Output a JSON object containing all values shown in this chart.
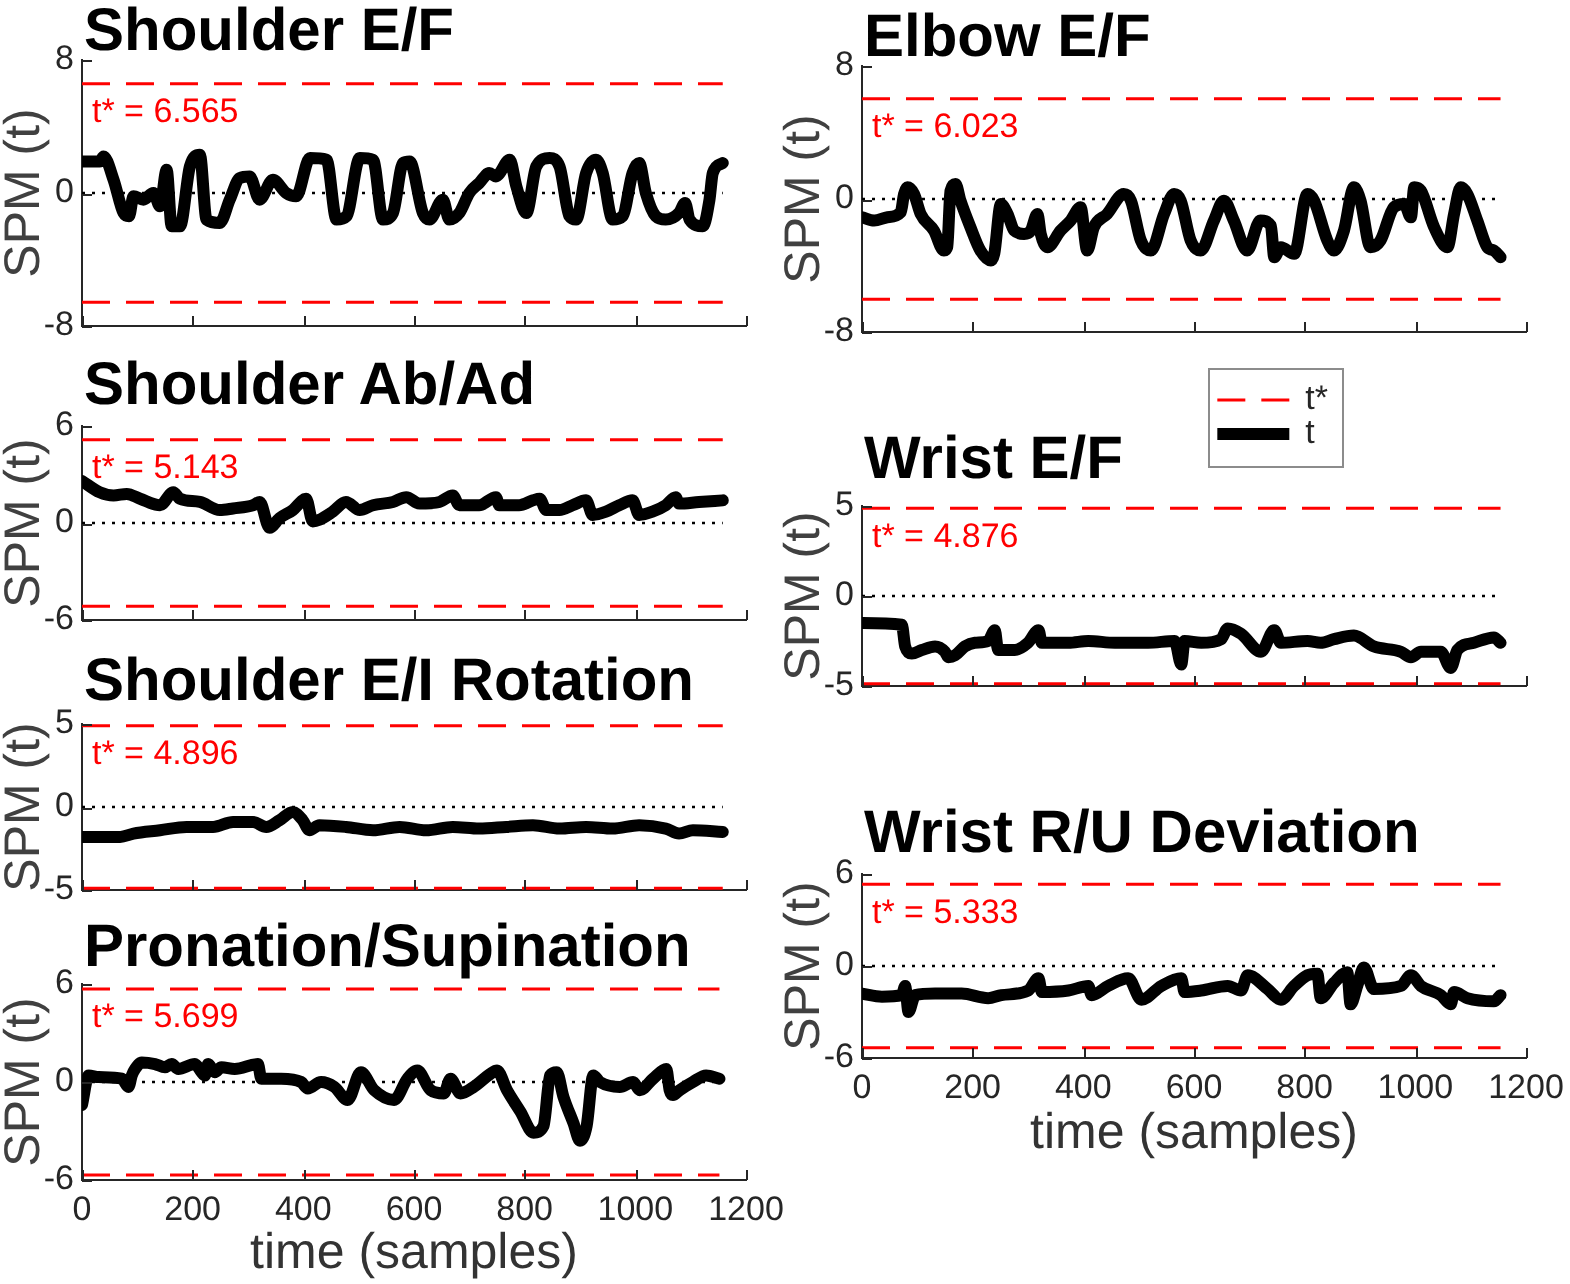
{
  "chart_data": [
    {
      "type": "line",
      "title": "Shoulder E/F",
      "ylabel": "SPM (t)",
      "xlim": [
        0,
        1200
      ],
      "xticks": [
        0,
        200,
        400,
        600,
        800,
        1000,
        1200
      ],
      "ylim": [
        -8,
        8
      ],
      "yticks": [
        -8,
        0,
        8
      ],
      "tick_labels": "y",
      "series": [
        {
          "color": "#000000",
          "x": [
            0,
            32,
            39,
            57,
            75,
            85,
            93,
            111,
            129,
            141,
            153,
            162,
            177,
            195,
            213,
            225,
            249,
            267,
            285,
            303,
            321,
            345,
            369,
            387,
            412,
            442,
            460,
            478,
            502,
            526,
            544,
            562,
            580,
            592,
            616,
            628,
            652,
            664,
            682,
            700,
            718,
            736,
            748,
            773,
            785,
            803,
            821,
            845,
            863,
            881,
            893,
            911,
            929,
            941,
            959,
            977,
            995,
            1007,
            1019,
            1037,
            1055,
            1079,
            1090,
            1098,
            1122,
            1134,
            1140,
            1158
          ],
          "values": [
            1.9,
            1.9,
            2.2,
            0.8,
            -1.2,
            -1.4,
            -0.2,
            -0.4,
            0,
            -0.8,
            1.4,
            -2,
            -2,
            1.6,
            2.3,
            -1.6,
            -1.8,
            -0.4,
            0.9,
            1,
            -0.4,
            0.8,
            0,
            -0.2,
            2.1,
            2,
            -1.6,
            -1.4,
            2.1,
            2,
            -1.6,
            -1.2,
            1.8,
            1.9,
            -1.2,
            -1.6,
            -0.4,
            -1.6,
            -1.2,
            0,
            0.6,
            1.2,
            1,
            2,
            0.4,
            -1.2,
            1.6,
            2.1,
            1.6,
            -1.4,
            -1.6,
            1.2,
            2,
            1.2,
            -1.6,
            -1.4,
            1.2,
            1.8,
            0,
            -1.4,
            -1.6,
            -1.2,
            -0.6,
            -1.6,
            -2,
            -0.4,
            1.2,
            1.8
          ]
        }
      ],
      "ref_lines": [
        {
          "axis": "y",
          "value": 6.565,
          "color": "#ff0000",
          "line_style": "dashed"
        },
        {
          "axis": "y",
          "value": -6.565,
          "color": "#ff0000",
          "line_style": "dashed"
        },
        {
          "axis": "y",
          "value": 0,
          "color": "#000000",
          "line_style": "dotted"
        }
      ],
      "annotations": [
        "t* = 6.565"
      ]
    },
    {
      "type": "line",
      "title": "Shoulder Ab/Ad",
      "ylabel": "SPM (t)",
      "xlim": [
        0,
        1200
      ],
      "xticks": [
        0,
        200,
        400,
        600,
        800,
        1000,
        1200
      ],
      "ylim": [
        -6,
        6
      ],
      "yticks": [
        -6,
        0,
        6
      ],
      "tick_labels": "y",
      "series": [
        {
          "color": "#000000",
          "x": [
            0,
            32,
            57,
            81,
            105,
            141,
            165,
            177,
            213,
            249,
            273,
            309,
            321,
            339,
            357,
            381,
            405,
            417,
            429,
            453,
            477,
            502,
            526,
            562,
            586,
            610,
            646,
            670,
            682,
            718,
            748,
            754,
            790,
            815,
            827,
            839,
            863,
            887,
            911,
            923,
            947,
            971,
            995,
            1007,
            1031,
            1055,
            1073,
            1079,
            1115,
            1158
          ],
          "values": [
            2.6,
            1.9,
            1.7,
            1.8,
            1.5,
            1.1,
            1.9,
            1.5,
            1.3,
            0.8,
            0.9,
            1.1,
            1.3,
            -0.3,
            0.3,
            0.8,
            1.5,
            0.1,
            0.2,
            0.7,
            1.3,
            0.8,
            1.1,
            1.3,
            1.6,
            1.2,
            1.3,
            1.7,
            1.1,
            1.1,
            1.6,
            1.1,
            1.1,
            1.4,
            1.5,
            0.8,
            0.8,
            1.1,
            1.4,
            0.5,
            0.7,
            1.1,
            1.4,
            0.5,
            0.7,
            1.1,
            1.6,
            1.2,
            1.3,
            1.4
          ]
        }
      ],
      "ref_lines": [
        {
          "axis": "y",
          "value": 5.143,
          "color": "#ff0000",
          "line_style": "dashed"
        },
        {
          "axis": "y",
          "value": -5.143,
          "color": "#ff0000",
          "line_style": "dashed"
        },
        {
          "axis": "y",
          "value": 0,
          "color": "#000000",
          "line_style": "dotted"
        }
      ],
      "annotations": [
        "t* = 5.143"
      ]
    },
    {
      "type": "line",
      "title": "Shoulder E/I Rotation",
      "ylabel": "SPM (t)",
      "xlim": [
        0,
        1200
      ],
      "xticks": [
        0,
        200,
        400,
        600,
        800,
        1000,
        1200
      ],
      "ylim": [
        -5,
        5
      ],
      "yticks": [
        -5,
        0,
        5
      ],
      "tick_labels": "y",
      "series": [
        {
          "color": "#000000",
          "x": [
            0,
            69,
            93,
            141,
            189,
            237,
            273,
            309,
            333,
            357,
            381,
            399,
            411,
            429,
            477,
            526,
            574,
            622,
            670,
            718,
            767,
            815,
            863,
            911,
            959,
            1007,
            1055,
            1079,
            1104,
            1158
          ],
          "values": [
            -1.8,
            -1.8,
            -1.6,
            -1.4,
            -1.2,
            -1.2,
            -0.9,
            -0.9,
            -1.2,
            -0.8,
            -0.3,
            -0.8,
            -1.4,
            -1.1,
            -1.2,
            -1.4,
            -1.2,
            -1.4,
            -1.2,
            -1.3,
            -1.2,
            -1.1,
            -1.3,
            -1.2,
            -1.3,
            -1.1,
            -1.3,
            -1.6,
            -1.4,
            -1.5
          ]
        }
      ],
      "ref_lines": [
        {
          "axis": "y",
          "value": 4.896,
          "color": "#ff0000",
          "line_style": "dashed"
        },
        {
          "axis": "y",
          "value": -4.896,
          "color": "#ff0000",
          "line_style": "dashed"
        },
        {
          "axis": "y",
          "value": 0,
          "color": "#000000",
          "line_style": "dotted"
        }
      ],
      "annotations": [
        "t* = 4.896"
      ]
    },
    {
      "type": "line",
      "title": "Pronation/Supination",
      "ylabel": "SPM (t)",
      "xlabel": "time (samples)",
      "xlim": [
        0,
        1200
      ],
      "xticks": [
        0,
        200,
        400,
        600,
        800,
        1000,
        1200
      ],
      "ylim": [
        -6,
        6
      ],
      "yticks": [
        -6,
        0,
        6
      ],
      "series": [
        {
          "color": "#000000",
          "x": [
            0,
            12,
            30,
            72,
            84,
            90,
            96,
            108,
            132,
            150,
            162,
            174,
            204,
            216,
            222,
            228,
            240,
            252,
            276,
            318,
            324,
            360,
            396,
            408,
            432,
            456,
            480,
            504,
            528,
            564,
            588,
            606,
            630,
            654,
            666,
            684,
            708,
            738,
            750,
            768,
            792,
            816,
            834,
            846,
            858,
            870,
            888,
            900,
            912,
            924,
            936,
            972,
            996,
            1008,
            1032,
            1056,
            1062,
            1068,
            1080,
            1104,
            1128,
            1152
          ],
          "values": [
            -1.4,
            0.4,
            0.3,
            0.2,
            -0.3,
            0.4,
            0.8,
            1.2,
            1.1,
            0.9,
            1.1,
            0.8,
            1.1,
            0.6,
            0.4,
            1.1,
            0.6,
            0.9,
            0.8,
            1.1,
            0.2,
            0.2,
            0,
            -0.4,
            0,
            -0.3,
            -1.1,
            0.6,
            -0.5,
            -1.1,
            0.2,
            0.7,
            -0.5,
            -0.7,
            0.2,
            -0.7,
            -0.3,
            0.5,
            0.7,
            -0.5,
            -1.8,
            -3.1,
            -2.7,
            0.4,
            0.6,
            -0.9,
            -2.5,
            -3.6,
            -2.7,
            0.4,
            0,
            -0.3,
            0,
            -0.5,
            0.2,
            0.8,
            -0.5,
            -0.8,
            -0.5,
            0,
            0.4,
            0.2
          ]
        }
      ],
      "ref_lines": [
        {
          "axis": "y",
          "value": 5.699,
          "color": "#ff0000",
          "line_style": "dashed"
        },
        {
          "axis": "y",
          "value": -5.699,
          "color": "#ff0000",
          "line_style": "dashed"
        },
        {
          "axis": "y",
          "value": 0,
          "color": "#000000",
          "line_style": "dotted"
        }
      ],
      "annotations": [
        "t* = 5.699"
      ]
    },
    {
      "type": "line",
      "title": "Elbow E/F",
      "ylabel": "SPM (t)",
      "xlim": [
        0,
        1200
      ],
      "xticks": [
        0,
        200,
        400,
        600,
        800,
        1000,
        1200
      ],
      "ylim": [
        -8,
        8
      ],
      "yticks": [
        -8,
        0,
        8
      ],
      "tick_labels": "y",
      "series": [
        {
          "color": "#000000",
          "x": [
            0,
            22,
            46,
            70,
            76,
            82,
            94,
            106,
            130,
            148,
            154,
            160,
            169,
            178,
            196,
            214,
            233,
            239,
            251,
            263,
            275,
            293,
            305,
            317,
            323,
            335,
            359,
            377,
            395,
            407,
            419,
            443,
            473,
            486,
            504,
            522,
            546,
            564,
            576,
            594,
            612,
            636,
            654,
            672,
            696,
            720,
            739,
            745,
            757,
            781,
            805,
            817,
            841,
            853,
            871,
            889,
            901,
            919,
            937,
            961,
            980,
            992,
            998,
            1010,
            1034,
            1058,
            1070,
            1082,
            1094,
            1112,
            1130,
            1142,
            1154
          ],
          "values": [
            -1.1,
            -1.3,
            -1.1,
            -0.8,
            0.3,
            0.7,
            0.3,
            -0.9,
            -1.9,
            -3.1,
            -2.9,
            0.5,
            0.9,
            -0.1,
            -1.7,
            -3.1,
            -3.7,
            -3.3,
            -0.3,
            -0.9,
            -1.9,
            -2.1,
            -1.9,
            -0.9,
            -2.1,
            -2.9,
            -1.9,
            -1.3,
            -0.5,
            -3.1,
            -1.7,
            -0.9,
            0.3,
            -0.1,
            -2.5,
            -3.1,
            -0.9,
            0.3,
            -0.1,
            -2.5,
            -3.1,
            -1.3,
            -0.1,
            -1.3,
            -3.1,
            -1.3,
            -1.6,
            -3.5,
            -2.9,
            -3.3,
            0.3,
            -0.1,
            -2.5,
            -3.1,
            -1.9,
            0.7,
            -0.1,
            -2.9,
            -2.5,
            -0.5,
            -0.3,
            -1.1,
            0.7,
            0.5,
            -1.7,
            -2.9,
            -0.9,
            0.7,
            0.3,
            -1.3,
            -2.9,
            -3.1,
            -3.5
          ]
        }
      ],
      "ref_lines": [
        {
          "axis": "y",
          "value": 6.023,
          "color": "#ff0000",
          "line_style": "dashed"
        },
        {
          "axis": "y",
          "value": -6.023,
          "color": "#ff0000",
          "line_style": "dashed"
        },
        {
          "axis": "y",
          "value": 0,
          "color": "#000000",
          "line_style": "dotted"
        }
      ],
      "annotations": [
        "t* = 6.023"
      ]
    },
    {
      "type": "line",
      "title": "Wrist E/F",
      "ylabel": "SPM (t)",
      "xlim": [
        0,
        1200
      ],
      "xticks": [
        0,
        200,
        400,
        600,
        800,
        1000,
        1200
      ],
      "ylim": [
        -5,
        5
      ],
      "yticks": [
        -5,
        0,
        5
      ],
      "tick_labels": "y",
      "legend": "top right",
      "series": [
        {
          "name": "t",
          "color": "#000000",
          "x": [
            0,
            72,
            78,
            90,
            108,
            132,
            150,
            156,
            168,
            186,
            204,
            228,
            240,
            246,
            276,
            300,
            319,
            325,
            373,
            409,
            457,
            517,
            565,
            577,
            583,
            613,
            649,
            661,
            685,
            721,
            745,
            757,
            805,
            829,
            853,
            889,
            925,
            974,
            992,
            1010,
            1046,
            1064,
            1076,
            1106,
            1142,
            1154
          ],
          "values": [
            -1.5,
            -1.6,
            -2.8,
            -3.2,
            -3.0,
            -2.8,
            -3.1,
            -3.4,
            -3.3,
            -2.8,
            -2.6,
            -2.5,
            -1.9,
            -3.0,
            -3.0,
            -2.6,
            -1.9,
            -2.6,
            -2.6,
            -2.5,
            -2.6,
            -2.6,
            -2.5,
            -3.8,
            -2.5,
            -2.6,
            -2.4,
            -1.8,
            -2.1,
            -3.1,
            -1.9,
            -2.6,
            -2.5,
            -2.6,
            -2.4,
            -2.2,
            -2.8,
            -3.1,
            -3.4,
            -3.1,
            -3.1,
            -4.0,
            -3.0,
            -2.6,
            -2.3,
            -2.6
          ]
        }
      ],
      "ref_lines": [
        {
          "axis": "y",
          "value": 4.876,
          "label": "t*",
          "color": "#ff0000",
          "line_style": "dashed"
        },
        {
          "axis": "y",
          "value": -4.876,
          "color": "#ff0000",
          "line_style": "dashed"
        },
        {
          "axis": "y",
          "value": 0,
          "color": "#000000",
          "line_style": "dotted"
        }
      ],
      "annotations": [
        "t* = 4.876"
      ]
    },
    {
      "type": "line",
      "title": "Wrist R/U Deviation",
      "ylabel": "SPM (t)",
      "xlabel": "time (samples)",
      "xlim": [
        0,
        1200
      ],
      "xticks": [
        0,
        200,
        400,
        600,
        800,
        1000,
        1200
      ],
      "ylim": [
        -6,
        6
      ],
      "yticks": [
        -6,
        0,
        6
      ],
      "series": [
        {
          "color": "#000000",
          "x": [
            0,
            36,
            72,
            78,
            84,
            96,
            132,
            180,
            228,
            252,
            300,
            319,
            325,
            373,
            409,
            415,
            445,
            481,
            505,
            541,
            577,
            583,
            613,
            661,
            685,
            697,
            733,
            757,
            781,
            805,
            823,
            829,
            853,
            877,
            883,
            895,
            907,
            925,
            974,
            992,
            1010,
            1046,
            1064,
            1070,
            1094,
            1142,
            1154
          ],
          "values": [
            -1.8,
            -2.0,
            -1.9,
            -1.3,
            -3.0,
            -1.9,
            -1.8,
            -1.8,
            -2.1,
            -1.9,
            -1.6,
            -0.8,
            -1.7,
            -1.6,
            -1.3,
            -1.9,
            -1.3,
            -0.8,
            -2.2,
            -1.3,
            -0.8,
            -1.7,
            -1.6,
            -1.3,
            -1.6,
            -0.6,
            -1.5,
            -2.2,
            -1.3,
            -0.6,
            -0.5,
            -2.1,
            -1.1,
            -0.4,
            -2.5,
            -1.3,
            -0.1,
            -1.5,
            -1.3,
            -0.6,
            -1.3,
            -1.9,
            -2.5,
            -1.7,
            -2.1,
            -2.3,
            -1.9
          ]
        }
      ],
      "ref_lines": [
        {
          "axis": "y",
          "value": 5.333,
          "color": "#ff0000",
          "line_style": "dashed"
        },
        {
          "axis": "y",
          "value": -5.333,
          "color": "#ff0000",
          "line_style": "dashed"
        },
        {
          "axis": "y",
          "value": 0,
          "color": "#000000",
          "line_style": "dotted"
        }
      ],
      "annotations": [
        "t* = 5.333"
      ]
    }
  ]
}
